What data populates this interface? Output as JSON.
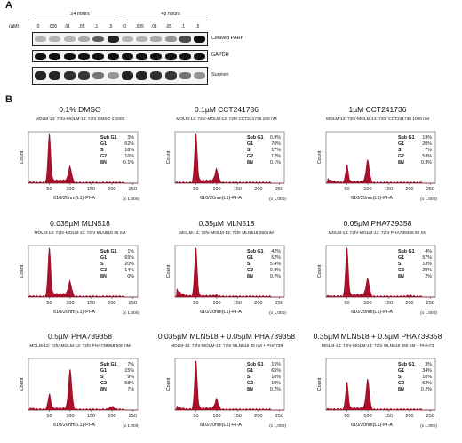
{
  "panel_a": {
    "letter": "A",
    "unit_label": "(µM)",
    "group_labels": [
      "24 hours",
      "48 hours"
    ],
    "lanes": [
      "0",
      ".005",
      ".01",
      ".05",
      ".1",
      ".5",
      "0",
      ".005",
      ".01",
      ".05",
      ".1",
      ".5"
    ],
    "blots": [
      {
        "label": "Cleaved PARP",
        "intensity": [
          0.15,
          0.15,
          0.15,
          0.2,
          0.6,
          0.9,
          0.15,
          0.15,
          0.2,
          0.3,
          0.7,
          1.0
        ]
      },
      {
        "label": "GAPDH",
        "intensity": [
          1,
          1,
          1,
          1,
          1,
          1,
          1,
          1,
          1,
          1,
          1,
          1
        ]
      },
      {
        "label": "Survivin",
        "intensity": [
          0.9,
          0.9,
          0.85,
          0.8,
          0.5,
          0.3,
          0.9,
          0.9,
          0.85,
          0.8,
          0.5,
          0.3
        ]
      }
    ]
  },
  "panel_b": {
    "letter": "B",
    "axis": {
      "xticks": [
        "50",
        "100",
        "150",
        "200",
        "250"
      ],
      "xlabel": "610/20nm(L1)-PI-A",
      "xunit": "(x 1,000)",
      "ylabel": "Count"
    },
    "stat_labels": [
      "Sub G1",
      "G1",
      "S",
      "G2",
      "8N"
    ]
  },
  "chart_data": [
    {
      "type": "area",
      "title": "0.1% DMSO",
      "subtitle": "MOLM-13: 72hr-MOLM-13: 72hr DMSO 1:1000",
      "stats": [
        "3%",
        "62%",
        "18%",
        "16%",
        "0.1%"
      ],
      "peaks": {
        "g1": 50,
        "g2": 100,
        "g1_height": 1.0,
        "g2_height": 0.3,
        "subg1": 0.03,
        "s": 0.18,
        "n8": 0.0
      }
    },
    {
      "type": "area",
      "title": "0.1µM CCT241736",
      "subtitle": "MOLM-13: 72hr-MOLM-13: 72hr CCT241736 100 nM",
      "stats": [
        "0.8%",
        "70%",
        "17%",
        "12%",
        "0.1%"
      ],
      "peaks": {
        "g1": 50,
        "g2": 100,
        "g1_height": 1.0,
        "g2_height": 0.25,
        "subg1": 0.01,
        "s": 0.17,
        "n8": 0.0
      }
    },
    {
      "type": "area",
      "title": "1µM CCT241736",
      "subtitle": "MOLM-13: 72hr-MOLM-13: 72hr CCT241736 1000 nM",
      "stats": [
        "19%",
        "20%",
        "7%",
        "53%",
        "0.3%"
      ],
      "peaks": {
        "g1": 50,
        "g2": 100,
        "g1_height": 0.35,
        "g2_height": 0.45,
        "subg1": 0.3,
        "s": 0.07,
        "n8": 0.0
      }
    },
    {
      "type": "area",
      "title": "0.035µM  MLN518",
      "subtitle": "MOLM-13: 72hr-MOLM-13: 72hr MLN518 35 nM",
      "stats": [
        "1%",
        "65%",
        "20%",
        "14%",
        "0%"
      ],
      "peaks": {
        "g1": 50,
        "g2": 100,
        "g1_height": 1.0,
        "g2_height": 0.28,
        "subg1": 0.02,
        "s": 0.2,
        "n8": 0.0
      }
    },
    {
      "type": "area",
      "title": "0.35µM  MLN518",
      "subtitle": "MOLM-13: 72hr-MOLM-13: 72hr MLN518 350 nM",
      "stats": [
        "42%",
        "52%",
        "5.4%",
        "0.8%",
        "0.2%"
      ],
      "peaks": {
        "g1": 50,
        "g2": 100,
        "g1_height": 1.0,
        "g2_height": 0.02,
        "subg1": 0.6,
        "s": 0.05,
        "n8": 0.0
      }
    },
    {
      "type": "area",
      "title": "0.05µM  PHA739358",
      "subtitle": "MOLM-13: 72hr-MOLM-13: 72hr PHA739358 50 nM",
      "stats": [
        "4%",
        "57%",
        "13%",
        "20%",
        "2%"
      ],
      "peaks": {
        "g1": 50,
        "g2": 100,
        "g1_height": 1.0,
        "g2_height": 0.35,
        "subg1": 0.05,
        "s": 0.13,
        "n8": 0.04
      }
    },
    {
      "type": "area",
      "title": "0.5µM  PHA739358",
      "subtitle": "MOLM-13: 72hr-MOLM-13: 72hr PHA739358 500 nM",
      "stats": [
        "7%",
        "15%",
        "9%",
        "58%",
        "7%"
      ],
      "peaks": {
        "g1": 50,
        "g2": 100,
        "g1_height": 0.3,
        "g2_height": 0.8,
        "subg1": 0.1,
        "s": 0.09,
        "n8": 0.12
      }
    },
    {
      "type": "area",
      "title": "0.035µM MLN518 + 0.05µM PHA739358",
      "subtitle": "MOLM-13: 72hr-MOLM-13: 72hr MLN518 35 nM + PHA739",
      "stats": [
        "15%",
        "65%",
        "10%",
        "10%",
        "0.2%"
      ],
      "peaks": {
        "g1": 50,
        "g2": 100,
        "g1_height": 1.0,
        "g2_height": 0.2,
        "subg1": 0.25,
        "s": 0.1,
        "n8": 0.0
      }
    },
    {
      "type": "area",
      "title": "0.35µM MLN518 + 0.5µM PHA739358",
      "subtitle": "MOLM-13: 72hr-MOLM-13: 72hr MLN518 350 nM + PHA73",
      "stats": [
        "3%",
        "34%",
        "10%",
        "52%",
        "0.2%"
      ],
      "peaks": {
        "g1": 50,
        "g2": 100,
        "g1_height": 0.55,
        "g2_height": 0.6,
        "subg1": 0.05,
        "s": 0.1,
        "n8": 0.0
      }
    }
  ]
}
